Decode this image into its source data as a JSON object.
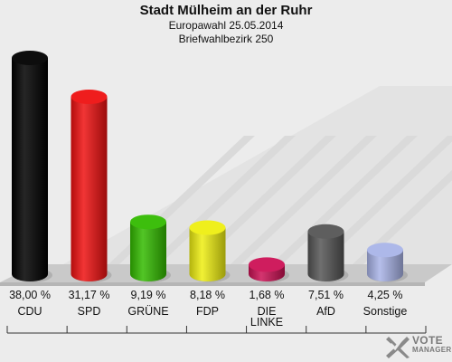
{
  "header": {
    "title": "Stadt Mülheim an der Ruhr",
    "subtitle1": "Europawahl 25.05.2014",
    "subtitle2": "Briefwahlbezirk 250"
  },
  "chart_data": {
    "type": "bar",
    "title": "Stadt Mülheim an der Ruhr",
    "subtitle": "Europawahl 25.05.2014 — Briefwahlbezirk 250",
    "categories": [
      "CDU",
      "SPD",
      "GRÜNE",
      "FDP",
      "DIE LINKE",
      "AfD",
      "Sonstige"
    ],
    "category_lines": [
      [
        "CDU"
      ],
      [
        "SPD"
      ],
      [
        "GRÜNE"
      ],
      [
        "FDP"
      ],
      [
        "DIE",
        "LINKE"
      ],
      [
        "AfD"
      ],
      [
        "Sonstige"
      ]
    ],
    "values": [
      38.0,
      31.17,
      9.19,
      8.18,
      1.68,
      7.51,
      4.25
    ],
    "value_labels": [
      "38,00 %",
      "31,17 %",
      "9,19 %",
      "8,18 %",
      "1,68 %",
      "7,51 %",
      "4,25 %"
    ],
    "colors": [
      "#000000",
      "#ee1111",
      "#33bb00",
      "#eeee11",
      "#cc1155",
      "#555555",
      "#a9b4e8"
    ],
    "ylim": [
      0,
      38
    ],
    "grid": false,
    "legend": "none"
  },
  "logo": {
    "text_line1": "VOTE",
    "text_line2": "MANAGER"
  }
}
